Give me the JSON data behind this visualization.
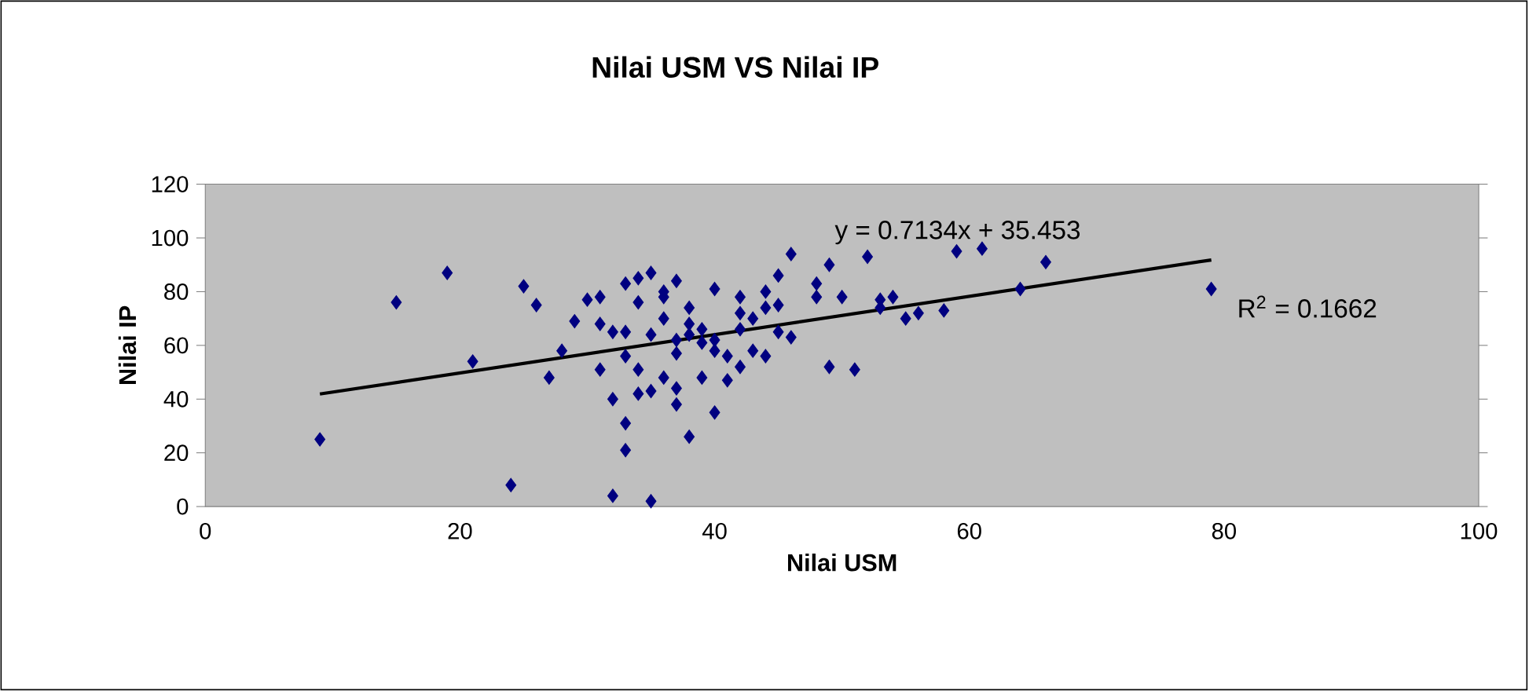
{
  "chart_data": {
    "type": "scatter",
    "title": "Nilai USM VS Nilai IP",
    "xlabel": "Nilai USM",
    "ylabel": "Nilai IP",
    "xlim": [
      0,
      100
    ],
    "ylim": [
      0,
      120
    ],
    "xticks": [
      0,
      20,
      40,
      60,
      80,
      100
    ],
    "yticks": [
      0,
      20,
      40,
      60,
      80,
      100,
      120
    ],
    "marker": "diamond",
    "annotations": [
      "y = 0.7134x + 35.453",
      "R$^{2}$ = 0.1662"
    ],
    "series": [
      {
        "color": "#000080",
        "x": [
          9,
          15,
          19,
          21,
          24,
          25,
          26,
          27,
          28,
          29,
          30,
          31,
          31,
          31,
          32,
          32,
          32,
          33,
          33,
          33,
          33,
          33,
          34,
          34,
          34,
          34,
          35,
          35,
          35,
          35,
          36,
          36,
          36,
          36,
          37,
          37,
          37,
          37,
          37,
          38,
          38,
          38,
          38,
          39,
          39,
          39,
          40,
          40,
          40,
          40,
          41,
          41,
          42,
          42,
          42,
          42,
          43,
          43,
          44,
          44,
          44,
          45,
          45,
          45,
          46,
          46,
          48,
          48,
          49,
          49,
          50,
          51,
          52,
          53,
          53,
          54,
          55,
          56,
          58,
          59,
          61,
          64,
          66,
          79
        ],
        "values": [
          25,
          76,
          87,
          54,
          8,
          82,
          75,
          48,
          58,
          69,
          77,
          78,
          51,
          68,
          65,
          4,
          40,
          83,
          65,
          56,
          31,
          21,
          85,
          76,
          51,
          42,
          87,
          64,
          43,
          2,
          80,
          70,
          48,
          78,
          84,
          62,
          57,
          44,
          38,
          74,
          68,
          64,
          26,
          66,
          61,
          48,
          81,
          62,
          58,
          35,
          56,
          47,
          78,
          72,
          66,
          52,
          70,
          58,
          80,
          74,
          56,
          86,
          75,
          65,
          94,
          63,
          83,
          78,
          90,
          52,
          78,
          51,
          93,
          77,
          74,
          78,
          70,
          72,
          73,
          95,
          96,
          81,
          91,
          81
        ]
      },
      {
        "type": "line",
        "color": "#000000",
        "marker": "none",
        "x": [
          9,
          79
        ],
        "values": [
          41.9,
          91.8
        ]
      }
    ]
  }
}
